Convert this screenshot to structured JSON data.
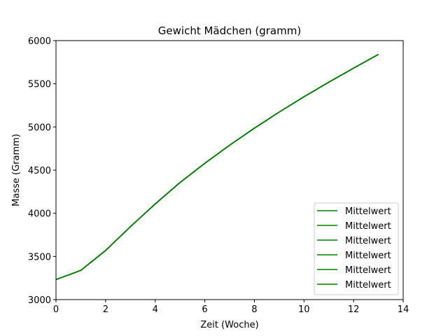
{
  "chart_data": {
    "type": "line",
    "title": "Gewicht Mädchen (gramm)",
    "xlabel": "Zeit (Woche)",
    "ylabel": "Masse (Gramm)",
    "xlim": [
      0,
      14
    ],
    "ylim": [
      3000,
      6000
    ],
    "xticks": [
      "0",
      "2",
      "4",
      "6",
      "8",
      "10",
      "12",
      "14"
    ],
    "yticks": [
      "3000",
      "3500",
      "4000",
      "4500",
      "5000",
      "5500",
      "6000"
    ],
    "grid": false,
    "legend_position": "lower-right",
    "series": [
      {
        "name": "Mittelwert",
        "color": "#008000",
        "x": [
          0,
          1,
          2,
          3,
          4,
          5,
          6,
          7,
          8,
          9,
          10,
          11,
          12,
          13
        ],
        "y": [
          3232,
          3339,
          3569,
          3845,
          4108,
          4356,
          4579,
          4788,
          4986,
          5172,
          5350,
          5518,
          5681,
          5840
        ]
      },
      {
        "name": "Mittelwert",
        "color": "#008000",
        "x": [
          0,
          1,
          2,
          3,
          4,
          5,
          6,
          7,
          8,
          9,
          10,
          11,
          12,
          13
        ],
        "y": [
          3232,
          3339,
          3569,
          3845,
          4108,
          4356,
          4579,
          4788,
          4986,
          5172,
          5350,
          5518,
          5681,
          5840
        ]
      },
      {
        "name": "Mittelwert",
        "color": "#008000",
        "x": [
          0,
          1,
          2,
          3,
          4,
          5,
          6,
          7,
          8,
          9,
          10,
          11,
          12,
          13
        ],
        "y": [
          3232,
          3339,
          3569,
          3845,
          4108,
          4356,
          4579,
          4788,
          4986,
          5172,
          5350,
          5518,
          5681,
          5840
        ]
      },
      {
        "name": "Mittelwert",
        "color": "#008000",
        "x": [
          0,
          1,
          2,
          3,
          4,
          5,
          6,
          7,
          8,
          9,
          10,
          11,
          12,
          13
        ],
        "y": [
          3232,
          3339,
          3569,
          3845,
          4108,
          4356,
          4579,
          4788,
          4986,
          5172,
          5350,
          5518,
          5681,
          5840
        ]
      },
      {
        "name": "Mittelwert",
        "color": "#008000",
        "x": [
          0,
          1,
          2,
          3,
          4,
          5,
          6,
          7,
          8,
          9,
          10,
          11,
          12,
          13
        ],
        "y": [
          3232,
          3339,
          3569,
          3845,
          4108,
          4356,
          4579,
          4788,
          4986,
          5172,
          5350,
          5518,
          5681,
          5840
        ]
      },
      {
        "name": "Mittelwert",
        "color": "#008000",
        "x": [
          0,
          1,
          2,
          3,
          4,
          5,
          6,
          7,
          8,
          9,
          10,
          11,
          12,
          13
        ],
        "y": [
          3232,
          3339,
          3569,
          3845,
          4108,
          4356,
          4579,
          4788,
          4986,
          5172,
          5350,
          5518,
          5681,
          5840
        ]
      }
    ]
  }
}
